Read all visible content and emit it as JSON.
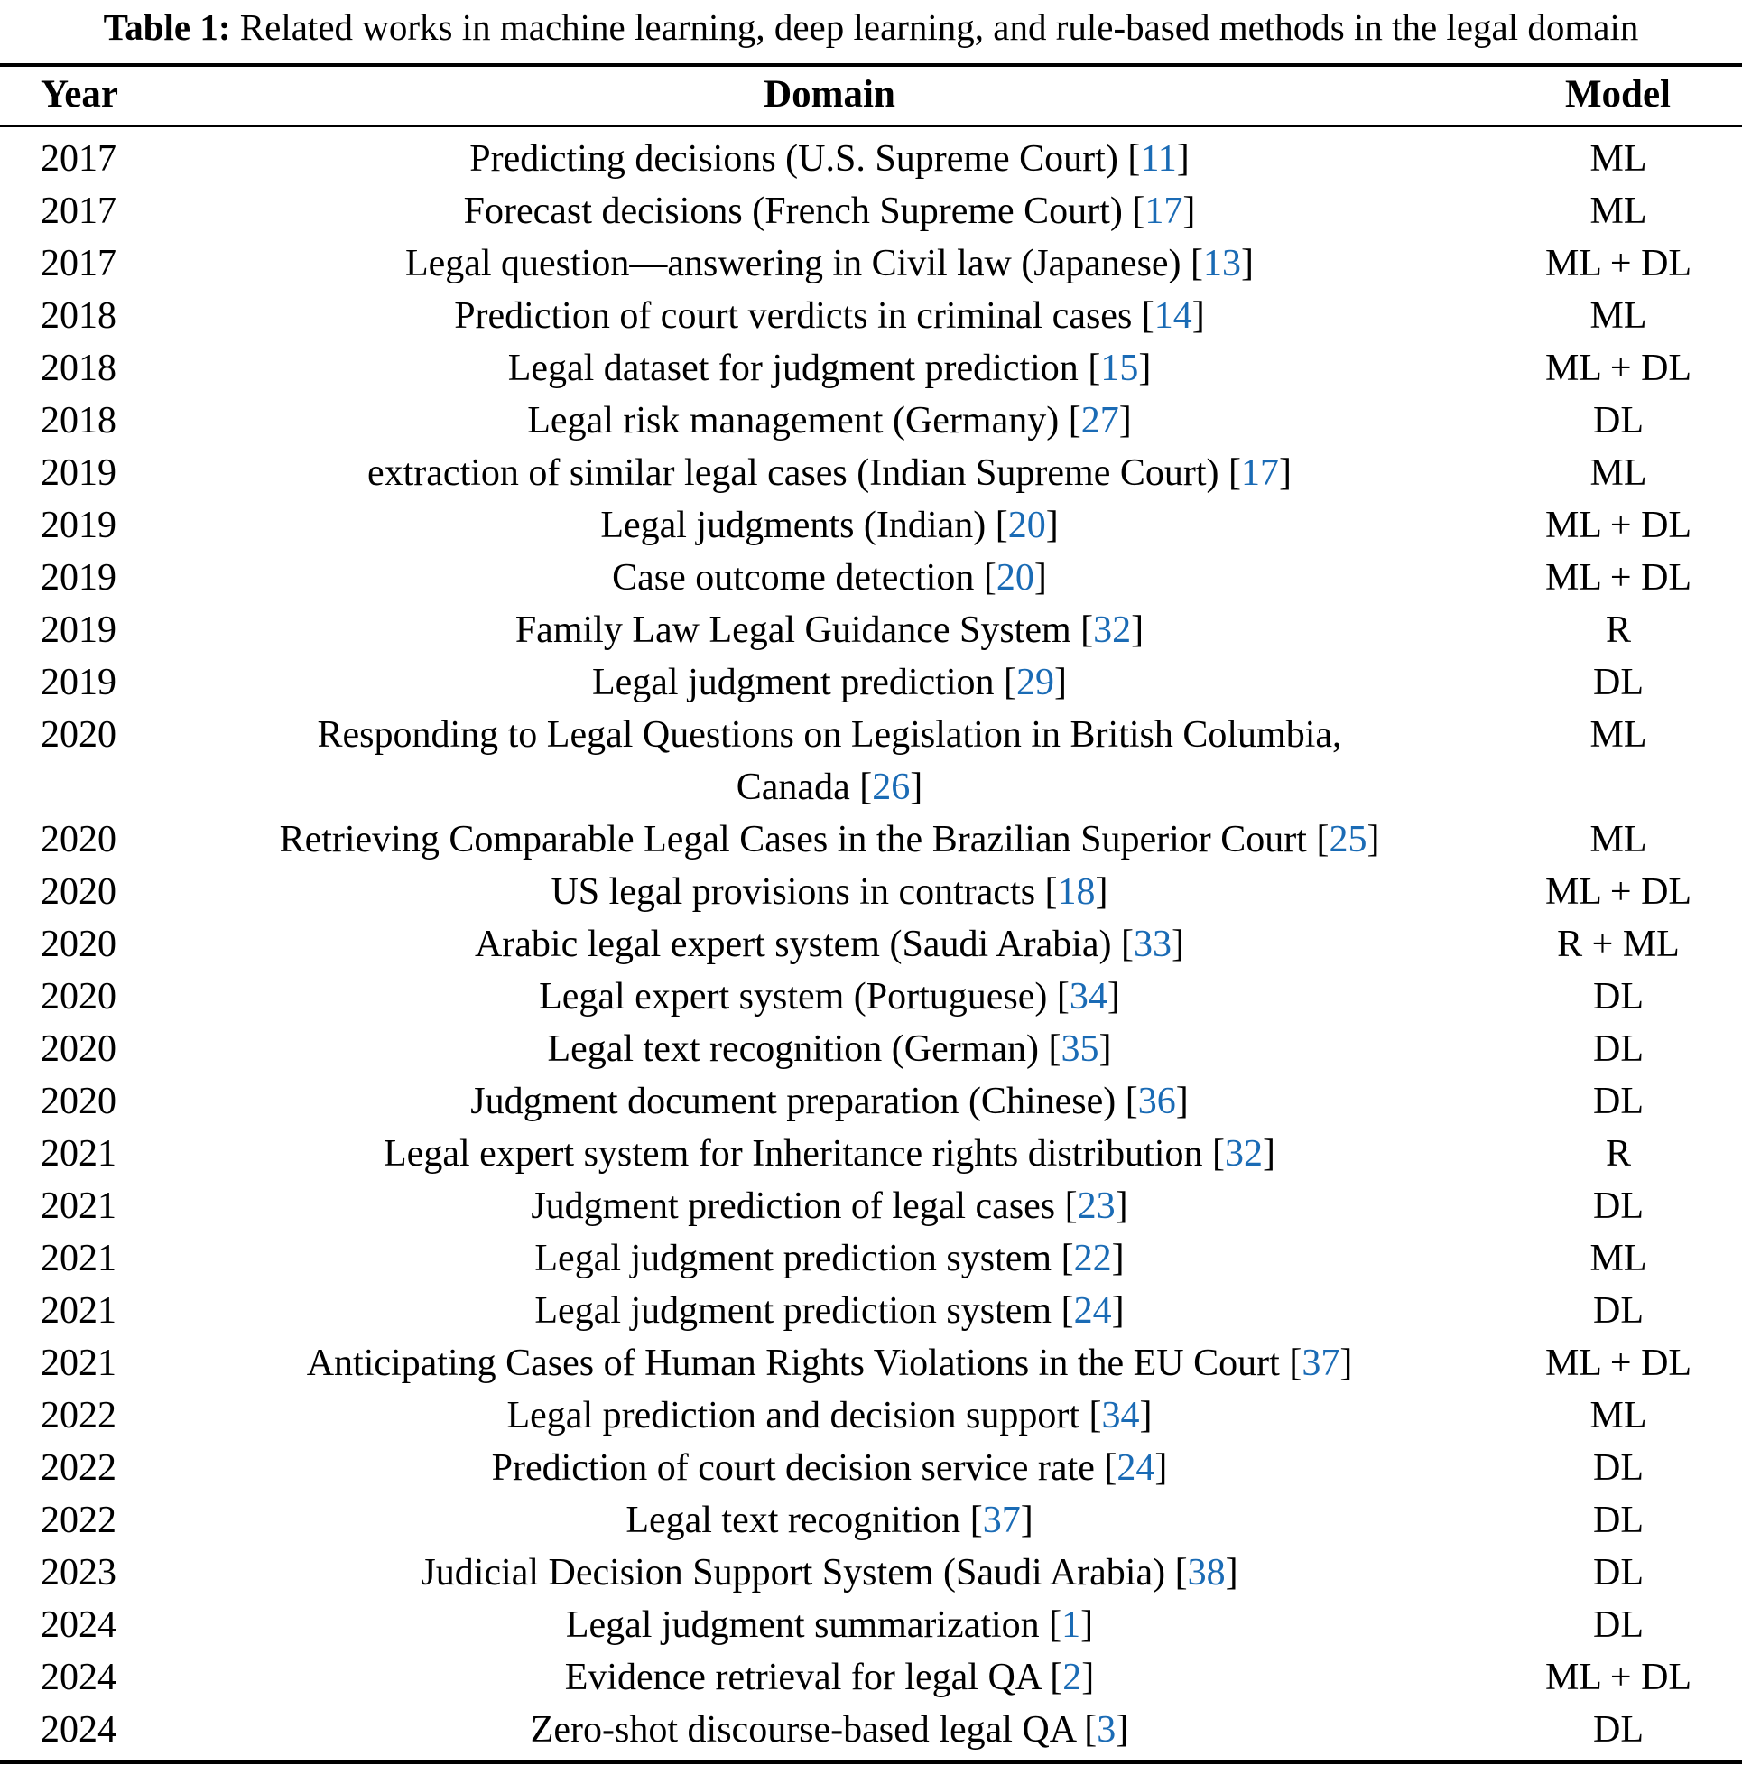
{
  "caption": {
    "label": "Table 1:",
    "text": " Related works in machine learning, deep learning, and rule-based methods in the legal domain"
  },
  "citation_color": "#1a6bb5",
  "table": {
    "headers": [
      "Year",
      "Domain",
      "Model"
    ],
    "bracket_open": "[",
    "bracket_close": "]",
    "rows": [
      {
        "year": "2017",
        "domain": "Predicting decisions (U.S. Supreme Court)",
        "ref": "11",
        "model": "ML"
      },
      {
        "year": "2017",
        "domain": "Forecast decisions (French Supreme Court)",
        "ref": "17",
        "model": "ML"
      },
      {
        "year": "2017",
        "domain": "Legal question—answering in Civil law (Japanese)",
        "ref": "13",
        "model": "ML + DL"
      },
      {
        "year": "2018",
        "domain": "Prediction of court verdicts in criminal cases",
        "ref": "14",
        "model": "ML"
      },
      {
        "year": "2018",
        "domain": "Legal dataset for judgment prediction",
        "ref": "15",
        "model": "ML + DL"
      },
      {
        "year": "2018",
        "domain": "Legal risk management (Germany)",
        "ref": "27",
        "model": "DL"
      },
      {
        "year": "2019",
        "domain": "extraction of similar legal cases (Indian Supreme Court)",
        "ref": "17",
        "model": "ML"
      },
      {
        "year": "2019",
        "domain": "Legal judgments (Indian)",
        "ref": "20",
        "model": "ML + DL"
      },
      {
        "year": "2019",
        "domain": "Case outcome detection",
        "ref": "20",
        "model": "ML + DL"
      },
      {
        "year": "2019",
        "domain": "Family Law Legal Guidance System",
        "ref": "32",
        "model": "R"
      },
      {
        "year": "2019",
        "domain": "Legal judgment prediction",
        "ref": "29",
        "model": "DL"
      },
      {
        "year": "2020",
        "domain": "Responding to Legal Questions on Legislation in British Columbia,",
        "domain2": "Canada",
        "ref": "26",
        "model": "ML"
      },
      {
        "year": "2020",
        "domain": "Retrieving Comparable Legal Cases in the Brazilian Superior Court",
        "ref": "25",
        "model": "ML"
      },
      {
        "year": "2020",
        "domain": "US legal provisions in contracts",
        "ref": "18",
        "model": "ML + DL"
      },
      {
        "year": "2020",
        "domain": "Arabic legal expert system (Saudi Arabia)",
        "ref": "33",
        "model": "R + ML"
      },
      {
        "year": "2020",
        "domain": "Legal expert system (Portuguese)",
        "ref": "34",
        "model": "DL"
      },
      {
        "year": "2020",
        "domain": "Legal text recognition (German)",
        "ref": "35",
        "model": "DL"
      },
      {
        "year": "2020",
        "domain": "Judgment document preparation (Chinese)",
        "ref": "36",
        "model": "DL"
      },
      {
        "year": "2021",
        "domain": "Legal expert system for Inheritance rights distribution",
        "ref": "32",
        "model": "R"
      },
      {
        "year": "2021",
        "domain": "Judgment prediction of legal cases",
        "ref": "23",
        "model": "DL"
      },
      {
        "year": "2021",
        "domain": "Legal judgment prediction system",
        "ref": "22",
        "model": "ML"
      },
      {
        "year": "2021",
        "domain": "Legal judgment prediction system",
        "ref": "24",
        "model": "DL"
      },
      {
        "year": "2021",
        "domain": "Anticipating Cases of Human Rights Violations in the EU Court",
        "ref": "37",
        "model": "ML + DL"
      },
      {
        "year": "2022",
        "domain": "Legal prediction and decision support",
        "ref": "34",
        "model": "ML"
      },
      {
        "year": "2022",
        "domain": "Prediction of court decision service rate",
        "ref": "24",
        "model": "DL"
      },
      {
        "year": "2022",
        "domain": "Legal text recognition",
        "ref": "37",
        "model": "DL"
      },
      {
        "year": "2023",
        "domain": "Judicial Decision Support System (Saudi Arabia)",
        "ref": "38",
        "model": "DL"
      },
      {
        "year": "2024",
        "domain": "Legal judgment summarization",
        "ref": "1",
        "model": "DL"
      },
      {
        "year": "2024",
        "domain": "Evidence retrieval for legal QA",
        "ref": "2",
        "model": "ML + DL"
      },
      {
        "year": "2024",
        "domain": "Zero-shot discourse-based legal QA",
        "ref": "3",
        "model": "DL"
      }
    ]
  }
}
